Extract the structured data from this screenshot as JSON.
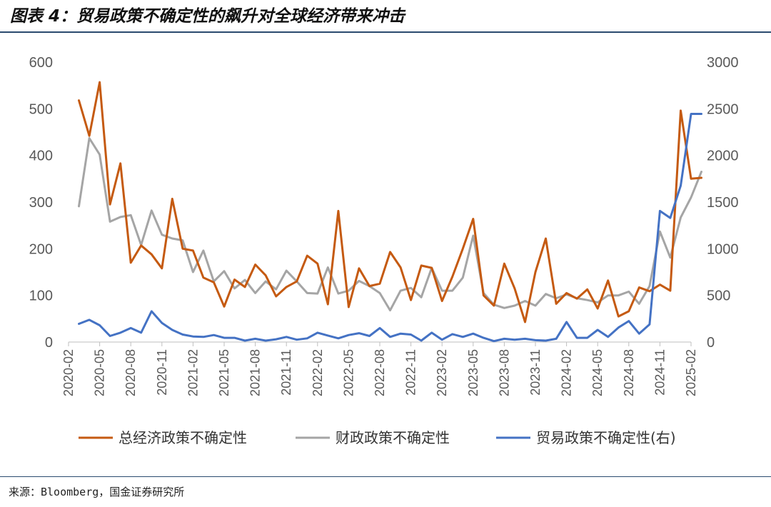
{
  "title": "图表 4：贸易政策不确定性的飙升对全球经济带来冲击",
  "source": "来源：Bloomberg，国金证券研究所",
  "chart_data": {
    "type": "line",
    "title": "图表 4：贸易政策不确定性的飙升对全球经济带来冲击",
    "x_tick_labels": [
      "2020-02",
      "2020-05",
      "2020-08",
      "2020-11",
      "2021-02",
      "2021-05",
      "2021-08",
      "2021-11",
      "2022-02",
      "2022-05",
      "2022-08",
      "2022-11",
      "2023-02",
      "2023-05",
      "2023-08",
      "2023-11",
      "2024-02",
      "2024-05",
      "2024-08",
      "2024-11",
      "2025-02"
    ],
    "x": [
      "2020-03",
      "2020-04",
      "2020-05",
      "2020-06",
      "2020-07",
      "2020-08",
      "2020-09",
      "2020-10",
      "2020-11",
      "2020-12",
      "2021-01",
      "2021-02",
      "2021-03",
      "2021-04",
      "2021-05",
      "2021-06",
      "2021-07",
      "2021-08",
      "2021-09",
      "2021-10",
      "2021-11",
      "2021-12",
      "2022-01",
      "2022-02",
      "2022-03",
      "2022-04",
      "2022-05",
      "2022-06",
      "2022-07",
      "2022-08",
      "2022-09",
      "2022-10",
      "2022-11",
      "2022-12",
      "2023-01",
      "2023-02",
      "2023-03",
      "2023-04",
      "2023-05",
      "2023-06",
      "2023-07",
      "2023-08",
      "2023-09",
      "2023-10",
      "2023-11",
      "2023-12",
      "2024-01",
      "2024-02",
      "2024-03",
      "2024-04",
      "2024-05",
      "2024-06",
      "2024-07",
      "2024-08",
      "2024-09",
      "2024-10",
      "2024-11",
      "2024-12",
      "2025-01",
      "2025-02",
      "2025-03"
    ],
    "y_left": {
      "min": 0,
      "max": 600,
      "ticks": [
        0,
        100,
        200,
        300,
        400,
        500,
        600
      ]
    },
    "y_right": {
      "min": 0,
      "max": 3000,
      "ticks": [
        0,
        500,
        1000,
        1500,
        2000,
        2500,
        3000
      ]
    },
    "legend_position": "bottom",
    "series": [
      {
        "name": "总经济政策不确定性",
        "axis": "left",
        "color": "#C55A11",
        "values": [
          518,
          442,
          557,
          295,
          383,
          170,
          207,
          188,
          158,
          307,
          200,
          196,
          138,
          128,
          76,
          134,
          118,
          166,
          143,
          98,
          118,
          130,
          185,
          168,
          81,
          281,
          75,
          158,
          120,
          125,
          193,
          160,
          90,
          164,
          159,
          88,
          140,
          200,
          264,
          100,
          78,
          168,
          115,
          43,
          150,
          222,
          82,
          105,
          93,
          113,
          72,
          132,
          55,
          66,
          117,
          109,
          123,
          110,
          496,
          350,
          352
        ]
      },
      {
        "name": "财政政策不确定性",
        "axis": "left",
        "color": "#A5A5A5",
        "values": [
          291,
          437,
          402,
          258,
          268,
          272,
          208,
          282,
          230,
          222,
          218,
          150,
          196,
          130,
          152,
          115,
          133,
          105,
          130,
          113,
          153,
          130,
          105,
          104,
          160,
          104,
          110,
          131,
          120,
          105,
          68,
          110,
          116,
          96,
          159,
          110,
          110,
          138,
          228,
          105,
          80,
          73,
          78,
          88,
          78,
          103,
          94,
          102,
          94,
          90,
          85,
          100,
          100,
          108,
          82,
          120,
          237,
          181,
          267,
          310,
          365
        ]
      },
      {
        "name": "贸易政策不确定性(右)",
        "axis": "right",
        "color": "#4472C4",
        "values": [
          195,
          238,
          180,
          65,
          100,
          150,
          100,
          330,
          205,
          130,
          80,
          60,
          55,
          75,
          45,
          45,
          15,
          35,
          15,
          30,
          55,
          25,
          40,
          100,
          70,
          40,
          75,
          95,
          65,
          150,
          55,
          90,
          80,
          15,
          100,
          25,
          85,
          55,
          90,
          45,
          10,
          35,
          25,
          35,
          20,
          15,
          35,
          215,
          45,
          45,
          130,
          55,
          155,
          225,
          90,
          190,
          1405,
          1330,
          1675,
          2445,
          2445
        ]
      }
    ]
  }
}
